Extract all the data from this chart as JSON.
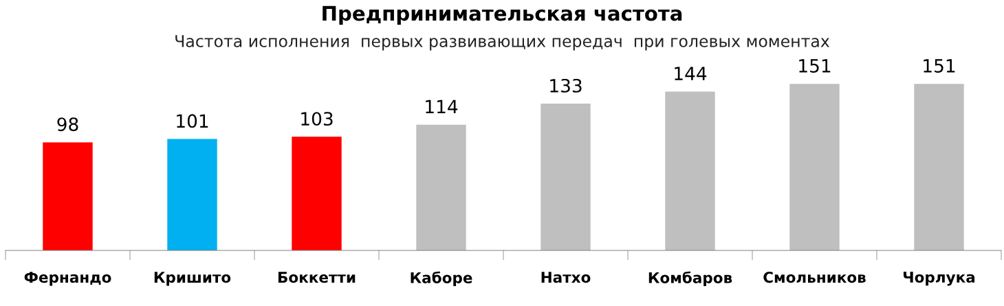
{
  "chart_data": {
    "type": "bar",
    "title": "Предпринимательская частота",
    "subtitle": "Частота исполнения  первых развивающих передач  при голевых моментах",
    "categories": [
      "Фернандо",
      "Кришито",
      "Боккетти",
      "Каборе",
      "Натхо",
      "Комбаров",
      "Смольников",
      "Чорлука"
    ],
    "values": [
      98,
      101,
      103,
      114,
      133,
      144,
      151,
      151
    ],
    "colors": [
      "#ff0000",
      "#00b0f0",
      "#ff0000",
      "#bfbfbf",
      "#bfbfbf",
      "#bfbfbf",
      "#bfbfbf",
      "#bfbfbf"
    ],
    "data_labels": true,
    "tick_labels": "x",
    "grid": false,
    "legend": false
  }
}
